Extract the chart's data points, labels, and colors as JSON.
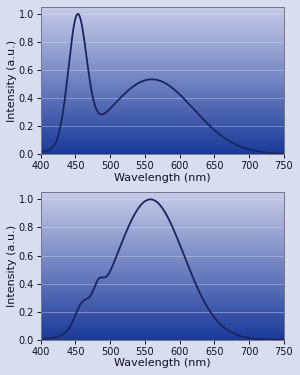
{
  "xlim": [
    400,
    750
  ],
  "ylim": [
    0,
    1.05
  ],
  "yticks": [
    0,
    0.2,
    0.4,
    0.6,
    0.8,
    1.0
  ],
  "xticks": [
    400,
    450,
    500,
    550,
    600,
    650,
    700,
    750
  ],
  "xlabel": "Wavelength (nm)",
  "ylabel": "Intensity (a.u.)",
  "line_color": "#1a2560",
  "line_width": 1.3,
  "bg_color_top": "#c8cce8",
  "bg_color_bottom": "#1a3a9a",
  "grid_color": "#dde0f0",
  "fig_bg": "#d8ddf0",
  "tick_label_size": 7,
  "axis_label_size": 8
}
